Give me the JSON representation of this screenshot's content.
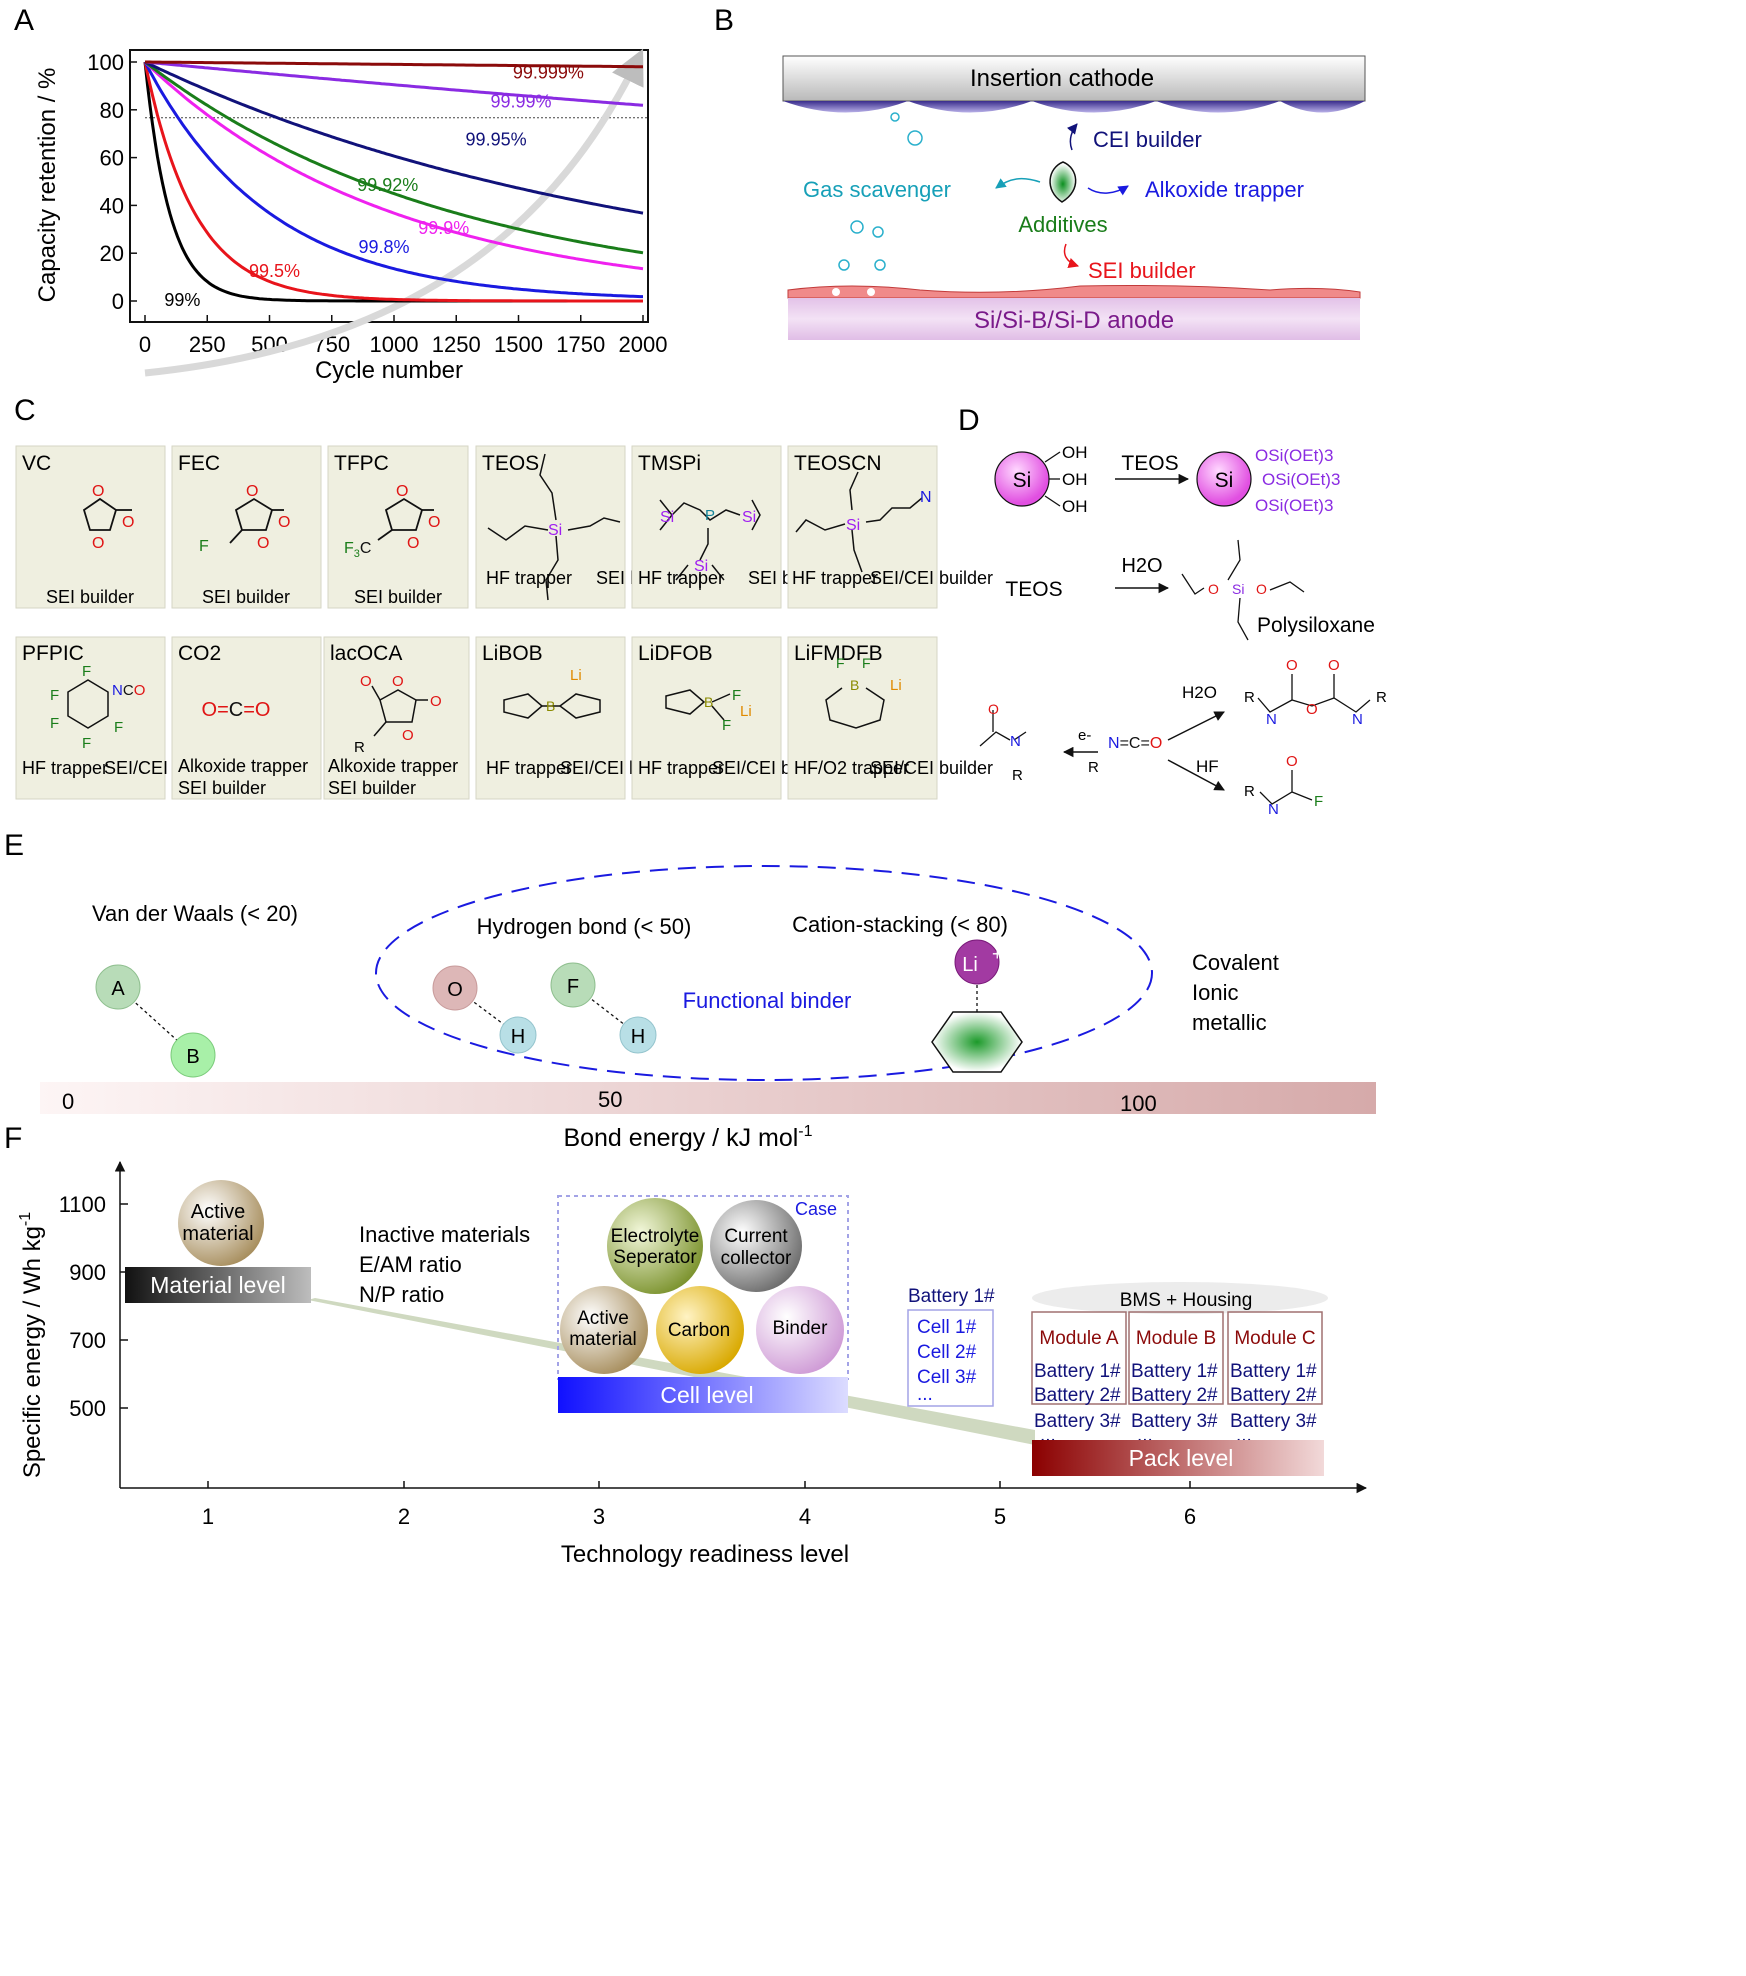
{
  "panels": {
    "A": "A",
    "B": "B",
    "C": "C",
    "D": "D",
    "E": "E",
    "F": "F"
  },
  "chart_data": {
    "type": "line",
    "xlabel": "Cycle number",
    "ylabel": "Capacity retention / %",
    "xlim": [
      0,
      2000
    ],
    "ylim": [
      0,
      100
    ],
    "xticks": [
      "0",
      "250",
      "500",
      "750",
      "1000",
      "1250",
      "1500",
      "1750",
      "2000"
    ],
    "yticks": [
      "0",
      "20",
      "40",
      "60",
      "80",
      "100"
    ],
    "reference_line_y": 80,
    "series": [
      {
        "name": "99%",
        "ce": 0.99,
        "color": "#000000",
        "label_at": [
          150,
          -2
        ]
      },
      {
        "name": "99.5%",
        "ce": 0.995,
        "color": "#e8141b",
        "label_at": [
          520,
          10
        ]
      },
      {
        "name": "99.8%",
        "ce": 0.998,
        "color": "#1a1ae0",
        "label_at": [
          960,
          20
        ]
      },
      {
        "name": "99.9%",
        "ce": 0.999,
        "color": "#ef21ef",
        "label_at": [
          1200,
          28
        ]
      },
      {
        "name": "99.92%",
        "ce": 0.9992,
        "color": "#1a7d1a",
        "label_at": [
          975,
          46
        ]
      },
      {
        "name": "99.95%",
        "ce": 0.9995,
        "color": "#11127a",
        "label_at": [
          1410,
          65
        ]
      },
      {
        "name": "99.99%",
        "ce": 0.9999,
        "color": "#8a2be2",
        "label_at": [
          1510,
          81
        ]
      },
      {
        "name": "99.999%",
        "ce": 0.99999,
        "color": "#8b0a0a",
        "label_at": [
          1620,
          93
        ]
      }
    ]
  },
  "panelB": {
    "cathode": "Insertion cathode",
    "anode": "Si/Si-B/Si-D anode",
    "cei": "CEI builder",
    "gas": "Gas scavenger",
    "alkoxide": "Alkoxide trapper",
    "additives": "Additives",
    "sei": "SEI builder"
  },
  "panelC": {
    "row1": [
      {
        "name": "VC",
        "roles": [
          "SEI builder"
        ]
      },
      {
        "name": "FEC",
        "roles": [
          "SEI builder"
        ]
      },
      {
        "name": "TFPC",
        "roles": [
          "SEI builder"
        ]
      },
      {
        "name": "TEOS",
        "roles": [
          "HF trapper",
          "SEI builder"
        ]
      },
      {
        "name": "TMSPi",
        "roles": [
          "HF trapper",
          "SEI builder"
        ]
      },
      {
        "name": "TEOSCN",
        "roles": [
          "HF trapper",
          "SEI/CEI builder"
        ]
      }
    ],
    "row2": [
      {
        "name": "PFPIC",
        "roles": [
          "HF trapper",
          "SEI/CEI builder"
        ]
      },
      {
        "name": "CO2",
        "roles": [
          "Alkoxide trapper",
          "SEI builder"
        ]
      },
      {
        "name": "lacOCA",
        "roles": [
          "Alkoxide trapper",
          "SEI builder"
        ]
      },
      {
        "name": "LiBOB",
        "roles": [
          "HF trapper",
          "SEI/CEI builder"
        ]
      },
      {
        "name": "LiDFOB",
        "roles": [
          "HF trapper",
          "SEI/CEI builder"
        ]
      },
      {
        "name": "LiFMDFB",
        "roles": [
          "HF/O2 trapper",
          "SEI/CEI builder"
        ]
      }
    ]
  },
  "panelD": {
    "si": "Si",
    "teos": "TEOS",
    "h2o": "H2O",
    "hf": "HF",
    "sioet": "Si(OEt)3",
    "polysiloxane": "Polysiloxane",
    "electron": "e-",
    "iso": "N=C=O"
  },
  "panelE": {
    "vdw": "Van der Waals (< 20)",
    "hbond": "Hydrogen bond (< 50)",
    "cation": "Cation-stacking (< 80)",
    "binder": "Functional binder",
    "covalent": "Covalent",
    "ionic": "Ionic",
    "metallic": "metallic",
    "atoms": {
      "A": "A",
      "B": "B",
      "O": "O",
      "H": "H",
      "F": "F",
      "Li": "Li"
    },
    "scale": [
      "0",
      "50",
      "100"
    ],
    "xlabel": "Bond energy / kJ mol"
  },
  "panelF": {
    "ylabel": "Specific energy / Wh kg",
    "xlabel": "Technology readiness level",
    "yticks": [
      "500",
      "700",
      "900",
      "1100"
    ],
    "xticks": [
      "1",
      "2",
      "3",
      "4",
      "5",
      "6"
    ],
    "material_level": "Material level",
    "cell_level": "Cell level",
    "pack_level": "Pack level",
    "active_material": [
      "Active",
      "material"
    ],
    "inactive": [
      "Inactive materials",
      "E/AM ratio",
      "N/P ratio"
    ],
    "case": "Case",
    "electrolyte": [
      "Electrolyte",
      "Seperator"
    ],
    "current": [
      "Current",
      "collector"
    ],
    "carbon": "Carbon",
    "binder": "Binder",
    "battery1": "Battery 1#",
    "cells": [
      "Cell 1#",
      "Cell 2#",
      "Cell 3#",
      "..."
    ],
    "bms": "BMS + Housing",
    "modules": [
      "Module A",
      "Module B",
      "Module C"
    ],
    "batteries": [
      "Battery 1#",
      "Battery 2#",
      "Battery 3#",
      "..."
    ]
  }
}
